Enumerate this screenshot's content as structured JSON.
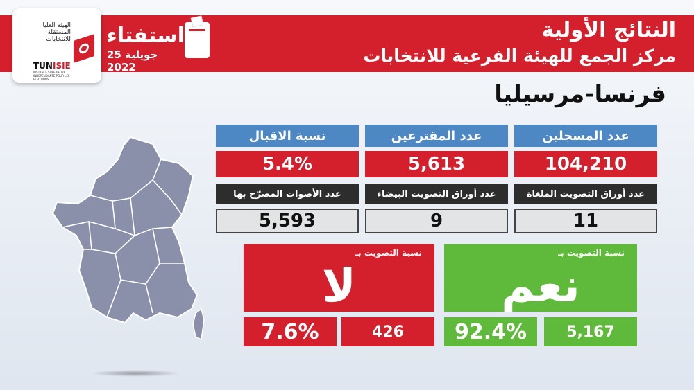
{
  "header": {
    "title": "النتائج الأولية",
    "subtitle": "مركز الجمع للهيئة الفرعية للانتخابات",
    "location": "فرنسا-مرسيليا",
    "brand_color": "#d4202d"
  },
  "logo": {
    "arabic_name": "الهيئة العليا المستقلة للانتخابات",
    "brand_prefix": "TUN",
    "brand_suffix": "ISIE",
    "french_name": "INSTANCE SUPERIEURE INDEPENDANTE POUR LES ELECTIONS"
  },
  "referendum": {
    "word": "استفتاء",
    "date": "25 جويلية 2022"
  },
  "stats": {
    "registered": {
      "label": "عدد المسجلين",
      "value": "104,210"
    },
    "voters": {
      "label": "عدد المقترعين",
      "value": "5,613"
    },
    "turnout": {
      "label": "نسبة الاقبال",
      "value": "5.4%"
    },
    "cancelled": {
      "label": "عدد أوراق التصويت الملغاة",
      "value": "11"
    },
    "blank": {
      "label": "عدد أوراق التصويت البيضاء",
      "value": "9"
    },
    "valid": {
      "label": "عدد الأصوات المصرّح بها",
      "value": "5,593"
    }
  },
  "results": {
    "yes": {
      "caption": "نسبة التصويت بـ",
      "word": "نعم",
      "percent": "92.4%",
      "count": "5,167",
      "color": "#5fba3c"
    },
    "no": {
      "caption": "نسبة التصويت بـ",
      "word": "لا",
      "percent": "7.6%",
      "count": "426",
      "color": "#d4202d"
    }
  },
  "map": {
    "region_color": "#8a8faa",
    "border_color": "#ffffff"
  },
  "colors": {
    "label_blue": "#4e88c4",
    "label_dark": "#2d2d2d",
    "value_grey": "#e3e4e6"
  }
}
